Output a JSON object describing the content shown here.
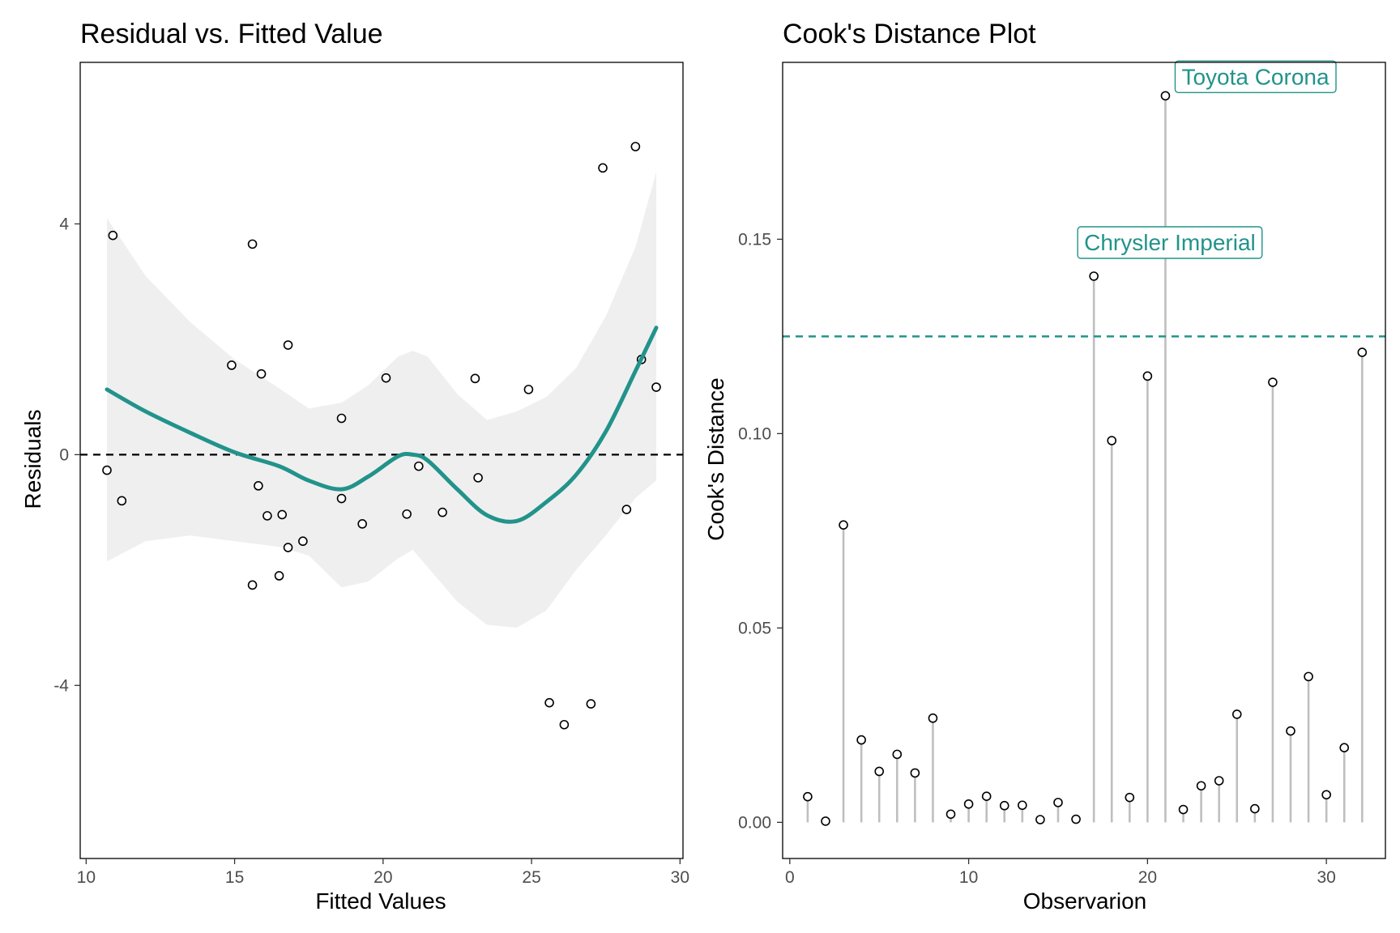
{
  "chart_data": [
    {
      "type": "scatter",
      "title": "Residual vs. Fitted Value",
      "xlabel": "Fitted Values",
      "ylabel": "Residuals",
      "xlim": [
        9.8,
        30.1
      ],
      "ylim": [
        -7.0,
        6.8
      ],
      "xticks": [
        10,
        15,
        20,
        25,
        30
      ],
      "yticks": [
        4,
        0,
        -4
      ],
      "reference_line_y": 0,
      "smooth_color": "#22938a",
      "band_color": "#efefef",
      "points": [
        {
          "x": 10.7,
          "y": -0.27
        },
        {
          "x": 10.9,
          "y": 3.8
        },
        {
          "x": 11.2,
          "y": -0.8
        },
        {
          "x": 14.9,
          "y": 1.55
        },
        {
          "x": 15.6,
          "y": 3.65
        },
        {
          "x": 15.6,
          "y": -2.26
        },
        {
          "x": 15.8,
          "y": -0.54
        },
        {
          "x": 15.9,
          "y": 1.4
        },
        {
          "x": 16.1,
          "y": -1.06
        },
        {
          "x": 16.5,
          "y": -2.1
        },
        {
          "x": 16.6,
          "y": -1.04
        },
        {
          "x": 16.8,
          "y": 1.9
        },
        {
          "x": 16.8,
          "y": -1.61
        },
        {
          "x": 17.3,
          "y": -1.5
        },
        {
          "x": 18.6,
          "y": 0.63
        },
        {
          "x": 18.6,
          "y": -0.76
        },
        {
          "x": 19.3,
          "y": -1.2
        },
        {
          "x": 20.1,
          "y": 1.33
        },
        {
          "x": 20.8,
          "y": -1.03
        },
        {
          "x": 21.2,
          "y": -0.2
        },
        {
          "x": 22.0,
          "y": -1.0
        },
        {
          "x": 23.1,
          "y": 1.32
        },
        {
          "x": 23.2,
          "y": -0.4
        },
        {
          "x": 24.9,
          "y": 1.13
        },
        {
          "x": 25.6,
          "y": -4.3
        },
        {
          "x": 26.1,
          "y": -4.68
        },
        {
          "x": 27.0,
          "y": -4.32
        },
        {
          "x": 27.4,
          "y": 4.97
        },
        {
          "x": 28.2,
          "y": -0.95
        },
        {
          "x": 28.5,
          "y": 5.34
        },
        {
          "x": 28.7,
          "y": 1.65
        },
        {
          "x": 29.2,
          "y": 1.17
        }
      ],
      "smooth": {
        "x": [
          10.7,
          12.0,
          13.5,
          15.0,
          16.5,
          17.5,
          18.6,
          19.5,
          20.5,
          21.0,
          21.5,
          22.5,
          23.5,
          24.5,
          25.5,
          26.5,
          27.5,
          28.5,
          29.2
        ],
        "y": [
          1.13,
          0.75,
          0.38,
          0.04,
          -0.2,
          -0.45,
          -0.6,
          -0.38,
          -0.03,
          0.0,
          -0.1,
          -0.6,
          -1.05,
          -1.15,
          -0.82,
          -0.35,
          0.4,
          1.45,
          2.2
        ],
        "upper": [
          4.1,
          3.1,
          2.3,
          1.65,
          1.15,
          0.8,
          0.9,
          1.2,
          1.7,
          1.8,
          1.7,
          1.05,
          0.6,
          0.75,
          1.0,
          1.5,
          2.4,
          3.6,
          4.9
        ],
        "lower": [
          -1.85,
          -1.5,
          -1.4,
          -1.5,
          -1.6,
          -1.75,
          -2.3,
          -2.2,
          -1.8,
          -1.65,
          -1.95,
          -2.55,
          -2.95,
          -3.0,
          -2.7,
          -2.0,
          -1.4,
          -0.75,
          -0.45
        ]
      }
    },
    {
      "type": "bar",
      "title": "Cook's Distance Plot",
      "xlabel": "Observarion",
      "ylabel": "Cook's Distance",
      "xlim": [
        -0.4,
        33.3
      ],
      "ylim": [
        -0.0093,
        0.1955
      ],
      "xticks": [
        0,
        10,
        20,
        30
      ],
      "yticks": [
        0.0,
        0.05,
        0.1,
        0.15
      ],
      "ytick_labels": [
        "0.00",
        "0.05",
        "0.10",
        "0.15"
      ],
      "threshold_y": 0.125,
      "threshold_color": "#22938a",
      "stem_color": "#bfbfbf",
      "observations": [
        1,
        2,
        3,
        4,
        5,
        6,
        7,
        8,
        9,
        10,
        11,
        12,
        13,
        14,
        15,
        16,
        17,
        18,
        19,
        20,
        21,
        22,
        23,
        24,
        25,
        26,
        27,
        28,
        29,
        30,
        31,
        32
      ],
      "values": [
        0.0066,
        0.0003,
        0.0765,
        0.0212,
        0.0131,
        0.0175,
        0.0127,
        0.0268,
        0.0021,
        0.0047,
        0.0067,
        0.0043,
        0.0044,
        0.0007,
        0.0051,
        0.0008,
        0.1405,
        0.0982,
        0.0064,
        0.1148,
        0.1869,
        0.0033,
        0.0094,
        0.0107,
        0.0278,
        0.0035,
        0.1132,
        0.0235,
        0.0375,
        0.0071,
        0.0192,
        0.1209
      ],
      "annotations": [
        {
          "label": "Chrysler Imperial",
          "x": 17,
          "y": 0.1405
        },
        {
          "label": "Toyota Corona",
          "x": 21,
          "y": 0.1869
        }
      ]
    }
  ]
}
